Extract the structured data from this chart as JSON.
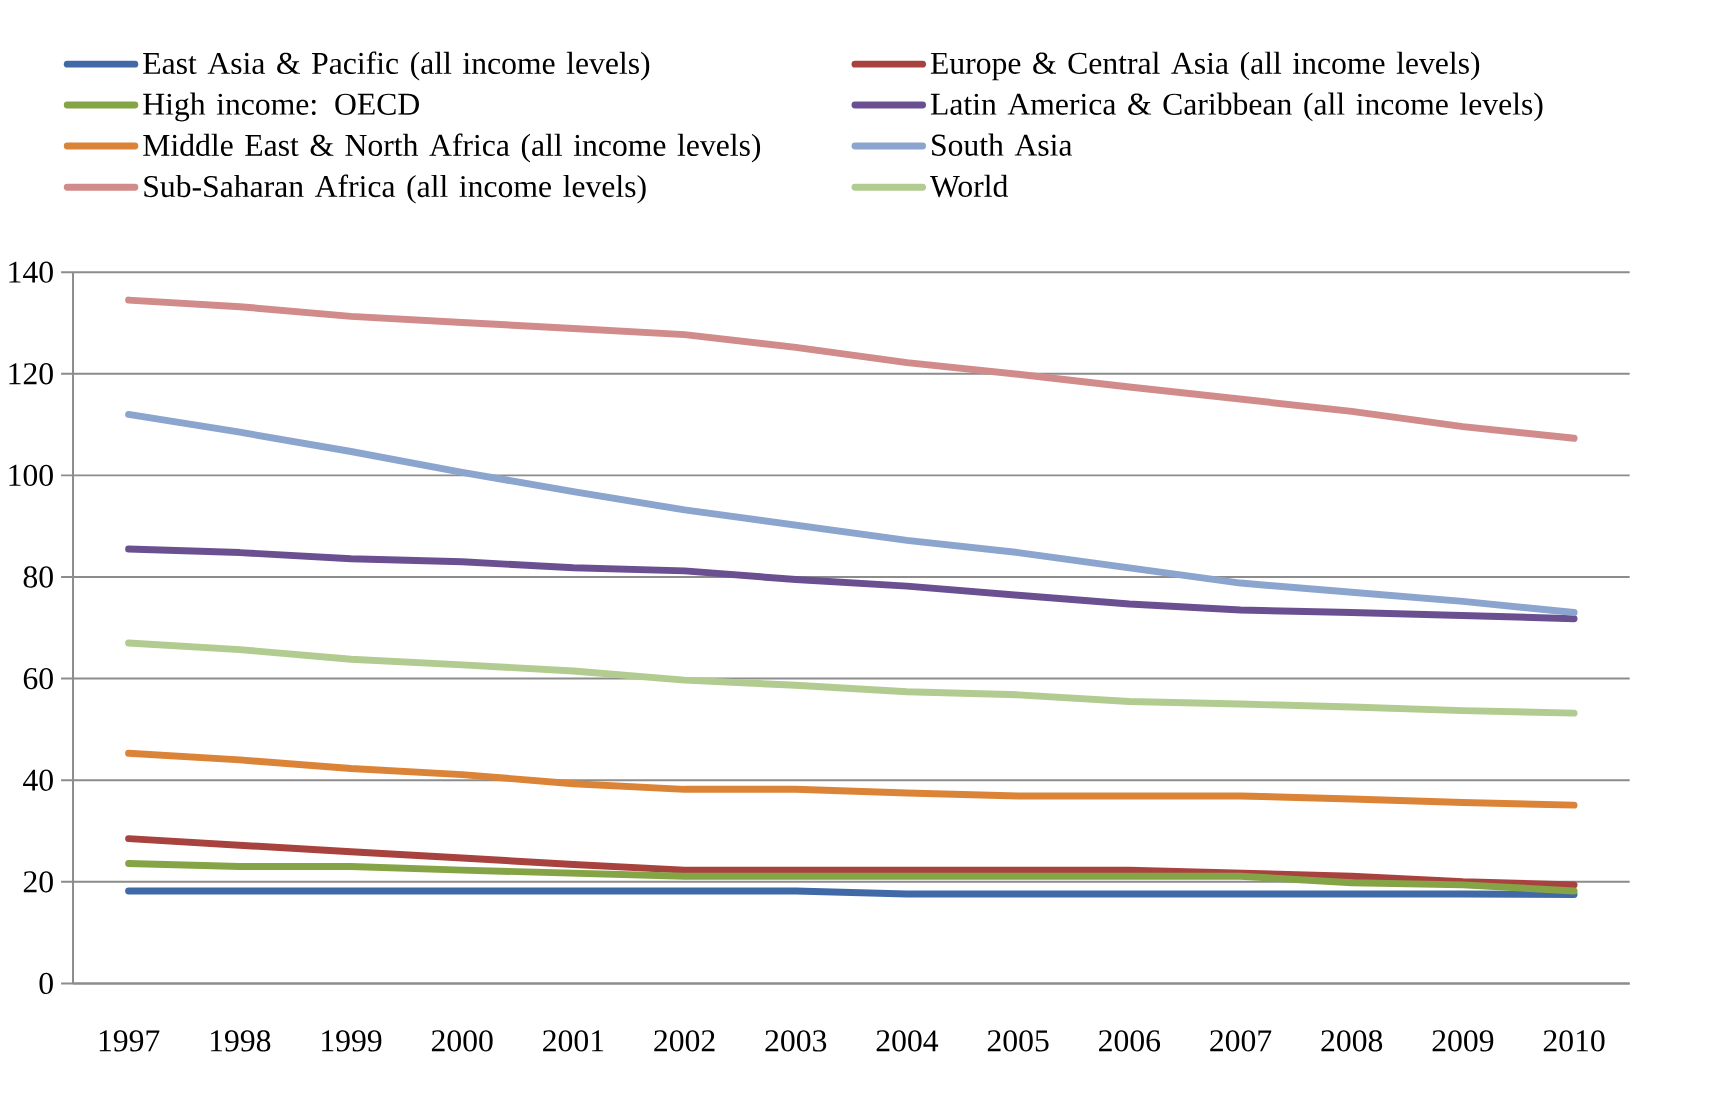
{
  "chart_data": {
    "type": "line",
    "categories": [
      "1997",
      "1998",
      "1999",
      "2000",
      "2001",
      "2002",
      "2003",
      "2004",
      "2005",
      "2006",
      "2007",
      "2008",
      "2009",
      "2010"
    ],
    "series": [
      {
        "name": "East Asia & Pacific  (all income levels)",
        "color": "#4169a7",
        "values": [
          18.2,
          18.2,
          18.2,
          18.2,
          18.2,
          18.2,
          18.2,
          17.6,
          17.6,
          17.6,
          17.6,
          17.6,
          17.6,
          17.5
        ]
      },
      {
        "name": "Europe & Central Asia (all income levels)",
        "color": "#a8423f",
        "values": [
          28.5,
          27.2,
          25.9,
          24.7,
          23.4,
          22.3,
          22.3,
          22.3,
          22.3,
          22.3,
          21.7,
          21.1,
          20.0,
          19.4
        ]
      },
      {
        "name": "High income:  OECD",
        "color": "#85a446",
        "values": [
          23.6,
          23.0,
          23.0,
          22.3,
          21.7,
          21.1,
          21.1,
          21.1,
          21.1,
          21.1,
          21.1,
          19.8,
          19.4,
          18.2
        ]
      },
      {
        "name": "Latin America  & Caribbean  (all income levels)",
        "color": "#6b5091",
        "values": [
          85.5,
          84.8,
          83.6,
          83.0,
          81.8,
          81.2,
          79.5,
          78.2,
          76.4,
          74.7,
          73.5,
          73.0,
          72.4,
          71.8
        ]
      },
      {
        "name": "Middle East & North Africa  (all income  levels)",
        "color": "#db8438",
        "values": [
          45.3,
          44.0,
          42.3,
          41.1,
          39.3,
          38.2,
          38.2,
          37.5,
          36.9,
          36.9,
          36.9,
          36.3,
          35.6,
          35.1
        ]
      },
      {
        "name": "South Asia",
        "color": "#8ba5ce",
        "values": [
          112.0,
          108.5,
          104.7,
          100.6,
          96.8,
          93.2,
          90.2,
          87.2,
          84.8,
          81.8,
          78.8,
          77.0,
          75.2,
          73.0
        ]
      },
      {
        "name": "Sub-Saharan  Africa  (all income levels)",
        "color": "#d08b8a",
        "values": [
          134.5,
          133.2,
          131.3,
          130.1,
          128.9,
          127.7,
          125.2,
          122.2,
          119.9,
          117.4,
          115.0,
          112.6,
          109.6,
          107.3
        ]
      },
      {
        "name": "World",
        "color": "#b2cb90",
        "values": [
          67.0,
          65.7,
          63.8,
          62.7,
          61.5,
          59.7,
          58.7,
          57.4,
          56.8,
          55.5,
          55.0,
          54.4,
          53.7,
          53.2
        ]
      }
    ],
    "ylim": [
      0,
      140
    ],
    "yticks": [
      0,
      20,
      40,
      60,
      80,
      100,
      120,
      140
    ],
    "grid": "y",
    "legend": "top",
    "marker": "none",
    "line_style": "solid"
  }
}
